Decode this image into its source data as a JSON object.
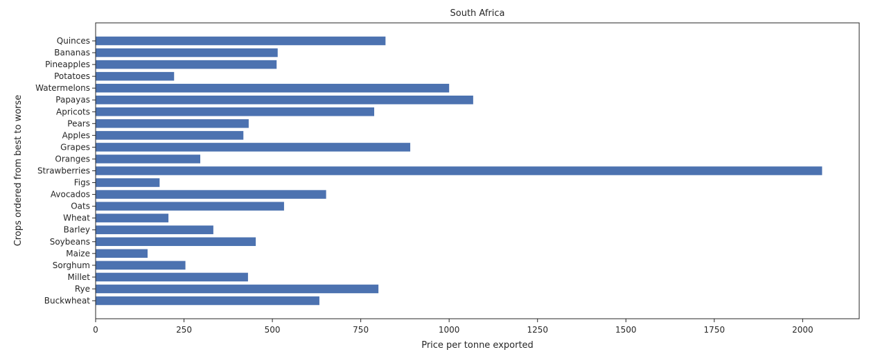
{
  "chart_data": {
    "type": "bar",
    "orientation": "horizontal",
    "title": "South Africa",
    "xlabel": "Price per tonne exported",
    "ylabel": "Crops ordered from best to worse",
    "xlim": [
      0,
      2160
    ],
    "xticks": [
      0,
      250,
      500,
      750,
      1000,
      1250,
      1500,
      1750,
      2000
    ],
    "grid": false,
    "bar_color": "#4c72b0",
    "categories": [
      "Quinces",
      "Bananas",
      "Pineapples",
      "Potatoes",
      "Watermelons",
      "Papayas",
      "Apricots",
      "Pears",
      "Apples",
      "Grapes",
      "Oranges",
      "Strawberries",
      "Figs",
      "Avocados",
      "Oats",
      "Wheat",
      "Barley",
      "Soybeans",
      "Maize",
      "Sorghum",
      "Millet",
      "Rye",
      "Buckwheat"
    ],
    "values": [
      820,
      515,
      512,
      222,
      1000,
      1068,
      788,
      433,
      418,
      890,
      296,
      2055,
      181,
      652,
      533,
      206,
      333,
      453,
      147,
      254,
      431,
      800,
      633
    ]
  }
}
